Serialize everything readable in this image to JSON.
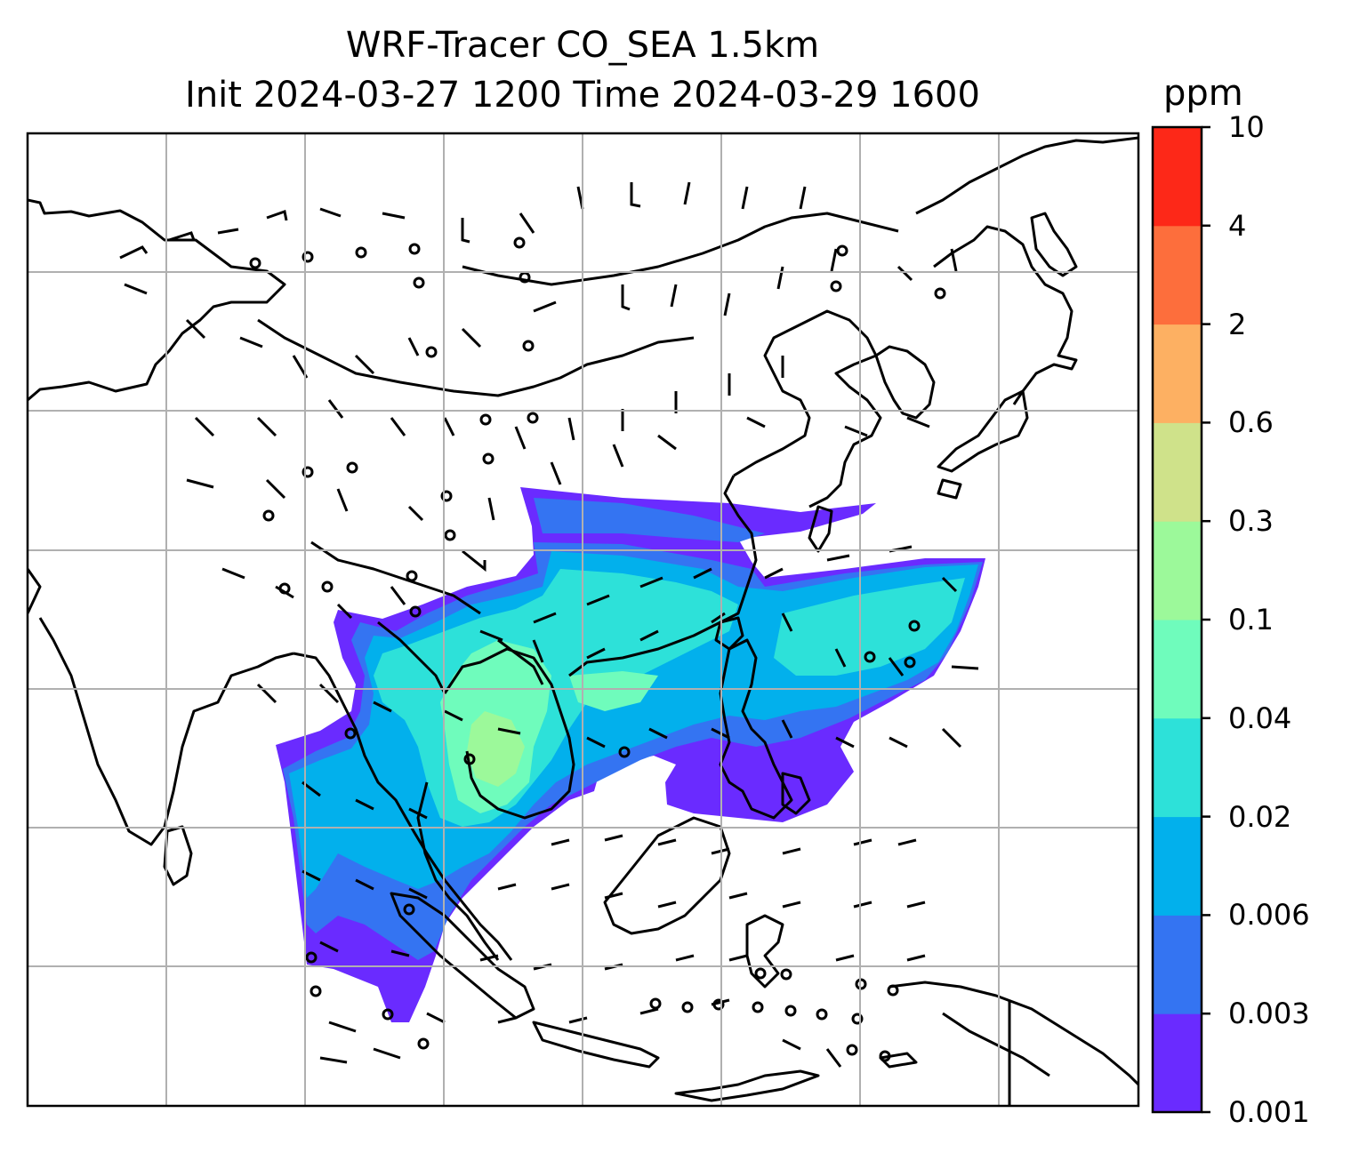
{
  "title": {
    "line1": "WRF-Tracer CO_SEA 1.5km",
    "line2": "Init 2024-03-27 1200 Time 2024-03-29 1600"
  },
  "colorbar": {
    "unit": "ppm",
    "levels": [
      "0.001",
      "0.003",
      "0.006",
      "0.02",
      "0.04",
      "0.1",
      "0.3",
      "0.6",
      "2",
      "4",
      "10"
    ],
    "colors": [
      "#6a2bff",
      "#3474f2",
      "#02b0ec",
      "#2de1d9",
      "#6ffcbc",
      "#9cf99a",
      "#cfe28a",
      "#fdb062",
      "#fd6e3c",
      "#fd2818"
    ]
  },
  "map": {
    "gridlines": true,
    "field": "CO_SEA tracer concentration",
    "overlay": "wind barbs",
    "coastline_color": "#000000",
    "grid_color": "#b0b0b0"
  }
}
